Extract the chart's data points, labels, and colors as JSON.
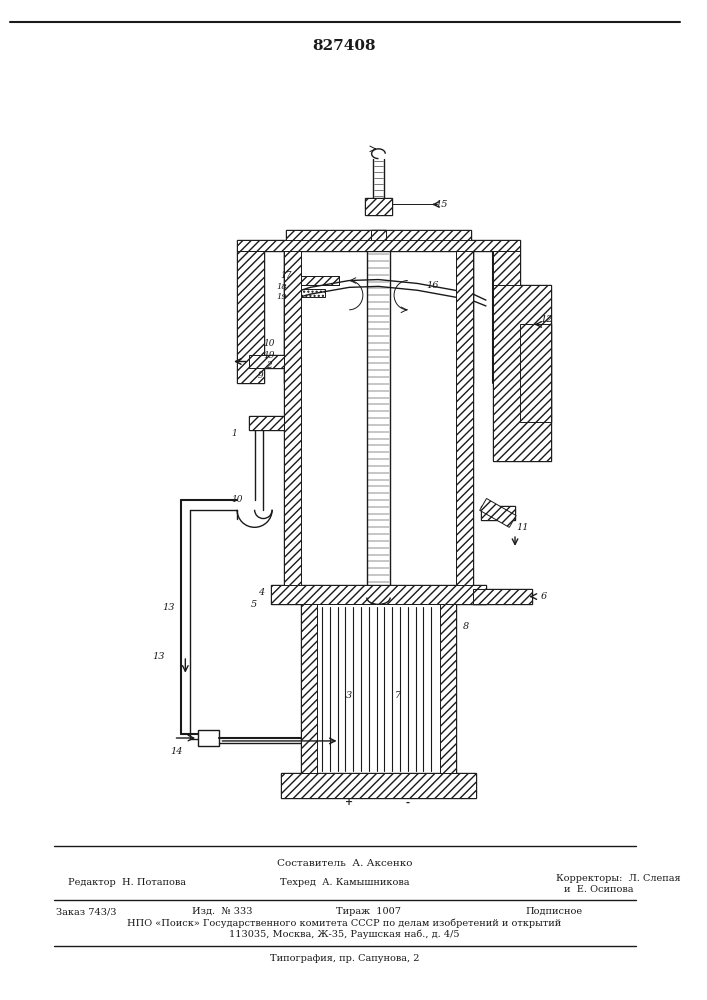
{
  "title": "827408",
  "bg_color": "#ffffff",
  "line_color": "#1a1a1a",
  "fig_width": 7.07,
  "fig_height": 10.0,
  "bottom_text_1": "Составитель  А. Аксенко",
  "bottom_text_2a": "Редактор  Н. Потапова",
  "bottom_text_2b": "Техред  А. Камышникова",
  "bottom_text_2c": "Корректоры:  Л. Слепая",
  "bottom_text_2d": "и  Е. Осипова",
  "bottom_text_3a": "Заказ 743/3",
  "bottom_text_3b": "Изд.  № 333",
  "bottom_text_3c": "Тираж  1007",
  "bottom_text_3d": "Подписное",
  "bottom_text_4": "НПО «Поиск» Государственного комитета СССР по делам изобретений и открытий",
  "bottom_text_5": "113035, Москва, Ж-35, Раушская наб., д. 4/5",
  "bottom_text_6": "Типография, пр. Сапунова, 2"
}
